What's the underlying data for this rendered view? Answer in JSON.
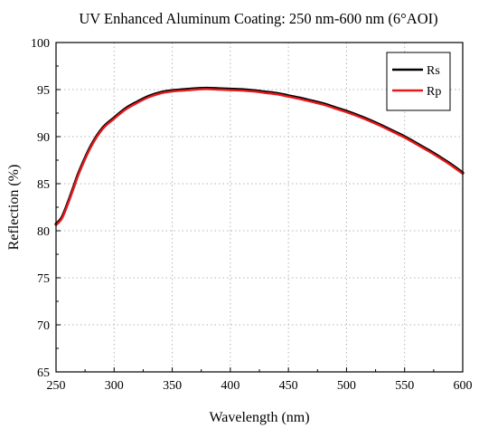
{
  "chart_data": {
    "type": "line",
    "title": "UV Enhanced Aluminum Coating: 250 nm-600 nm (6°AOI)",
    "xlabel": "Wavelength (nm)",
    "ylabel": "Reflection (%)",
    "xlim": [
      250,
      600
    ],
    "ylim": [
      65,
      100
    ],
    "xticks": [
      "250",
      "300",
      "350",
      "400",
      "450",
      "500",
      "550",
      "600"
    ],
    "yticks": [
      "65",
      "70",
      "75",
      "80",
      "85",
      "90",
      "95",
      "100"
    ],
    "grid": true,
    "legend_position": "top-right",
    "series": [
      {
        "name": "Rs",
        "color": "#000000",
        "x": [
          250,
          255,
          260,
          265,
          270,
          280,
          290,
          300,
          310,
          320,
          330,
          340,
          350,
          360,
          370,
          380,
          390,
          400,
          410,
          420,
          430,
          440,
          450,
          460,
          470,
          480,
          490,
          500,
          510,
          520,
          530,
          540,
          550,
          560,
          570,
          580,
          590,
          600
        ],
        "values": [
          80.7,
          81.4,
          82.9,
          84.6,
          86.3,
          89.0,
          90.9,
          92.0,
          93.0,
          93.7,
          94.3,
          94.7,
          94.9,
          95.0,
          95.1,
          95.15,
          95.1,
          95.05,
          95.0,
          94.9,
          94.75,
          94.6,
          94.35,
          94.1,
          93.8,
          93.5,
          93.1,
          92.7,
          92.25,
          91.75,
          91.2,
          90.6,
          90.0,
          89.3,
          88.6,
          87.85,
          87.05,
          86.15
        ]
      },
      {
        "name": "Rp",
        "color": "#e31a1c",
        "x": [
          250,
          255,
          260,
          265,
          270,
          280,
          290,
          300,
          310,
          320,
          330,
          340,
          350,
          360,
          370,
          380,
          390,
          400,
          410,
          420,
          430,
          440,
          450,
          460,
          470,
          480,
          490,
          500,
          510,
          520,
          530,
          540,
          550,
          560,
          570,
          580,
          590,
          600
        ],
        "values": [
          80.6,
          81.3,
          82.8,
          84.5,
          86.2,
          88.9,
          90.8,
          91.9,
          92.9,
          93.6,
          94.2,
          94.6,
          94.8,
          94.9,
          95.0,
          95.05,
          95.0,
          94.95,
          94.9,
          94.8,
          94.65,
          94.5,
          94.25,
          94.0,
          93.7,
          93.4,
          93.0,
          92.6,
          92.15,
          91.65,
          91.1,
          90.5,
          89.9,
          89.2,
          88.5,
          87.75,
          86.95,
          86.05
        ]
      }
    ]
  }
}
